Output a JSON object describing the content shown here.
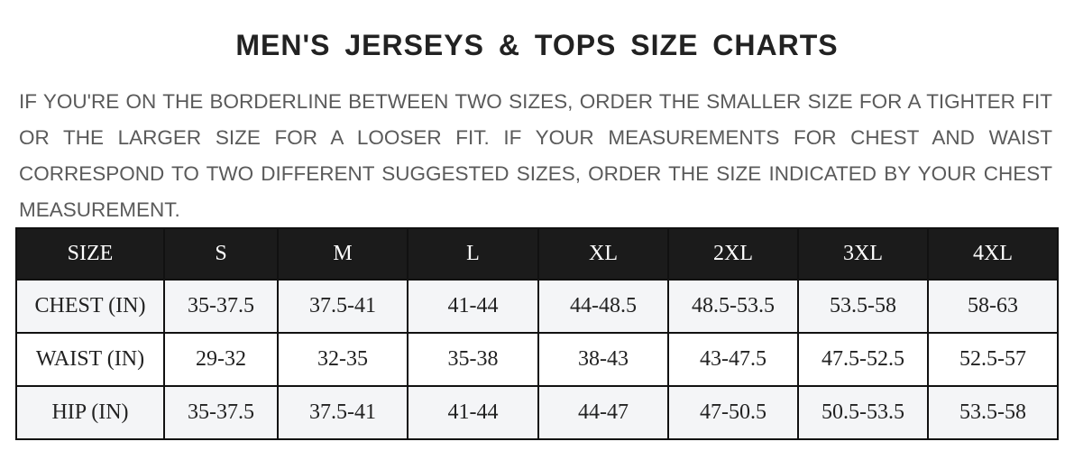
{
  "title": "MEN'S JERSEYS & TOPS SIZE CHARTS",
  "note": "IF YOU'RE ON THE BORDERLINE BETWEEN TWO SIZES, ORDER THE SMALLER SIZE FOR A TIGHTER FIT OR THE LARGER SIZE FOR A LOOSER FIT. IF YOUR MEASUREMENTS FOR CHEST AND WAIST CORRESPOND TO TWO DIFFERENT SUGGESTED SIZES, ORDER THE SIZE INDICATED BY YOUR CHEST MEASUREMENT.",
  "table": {
    "headers": [
      "SIZE",
      "S",
      "M",
      "L",
      "XL",
      "2XL",
      "3XL",
      "4XL"
    ],
    "rows": [
      [
        "CHEST (IN)",
        "35-37.5",
        "37.5-41",
        "41-44",
        "44-48.5",
        "48.5-53.5",
        "53.5-58",
        "58-63"
      ],
      [
        "WAIST (IN)",
        "29-32",
        "32-35",
        "35-38",
        "38-43",
        "43-47.5",
        "47.5-52.5",
        "52.5-57"
      ],
      [
        "HIP (IN)",
        "35-37.5",
        "37.5-41",
        "41-44",
        "44-47",
        "47-50.5",
        "50.5-53.5",
        "53.5-58"
      ]
    ]
  },
  "colors": {
    "header_bg": "#1b1b1b",
    "row_shade": "#f4f5f7",
    "text": "#5a5a5a"
  }
}
